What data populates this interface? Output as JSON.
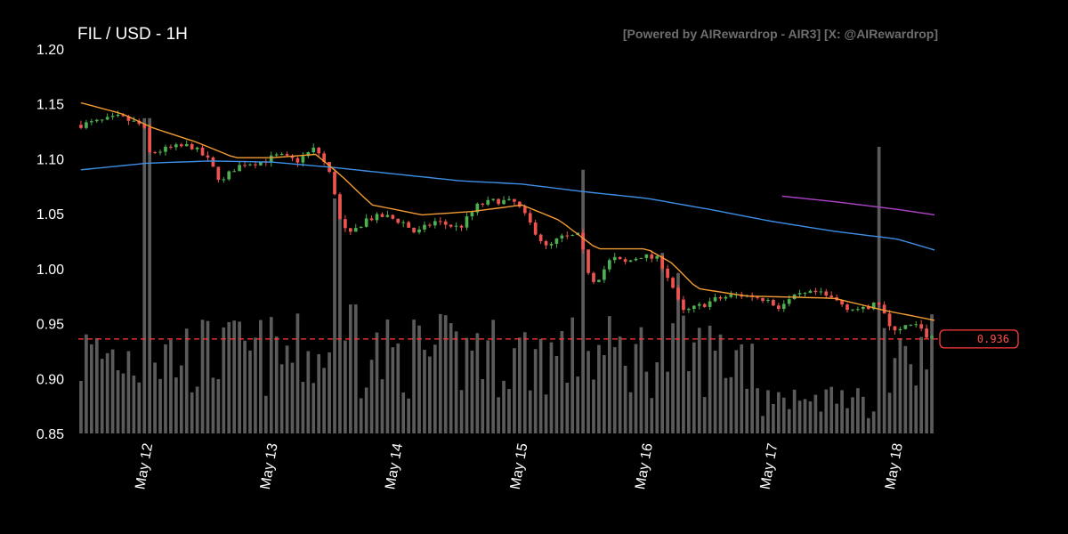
{
  "header": {
    "title": "FIL / USD - 1H",
    "credit": "[Powered by AIRewardrop - AIR3] [X: @AIRewardrop]"
  },
  "colors": {
    "background": "#000000",
    "up": "#4caf50",
    "down": "#ef5350",
    "ma_fast": "#f39c33",
    "ma_slow": "#3d8fe6",
    "ma_long": "#b044c8",
    "volume": "#6b6b6b",
    "last_price": "#ff3b3b"
  },
  "chart_data": {
    "type": "candlestick",
    "title": "FIL / USD - 1H",
    "ylim": [
      0.85,
      1.2
    ],
    "y_ticks": [
      "1.20",
      "1.15",
      "1.10",
      "1.05",
      "1.00",
      "0.95",
      "0.90",
      "0.85"
    ],
    "x_ticks": [
      "May 12",
      "May 13",
      "May 14",
      "May 15",
      "May 16",
      "May 17",
      "May 18"
    ],
    "x_range_days": [
      11.45,
      18.3
    ],
    "last_price": 0.936,
    "last_price_label": "0.936",
    "close_anchors": [
      [
        11.47,
        1.131
      ],
      [
        11.62,
        1.134
      ],
      [
        11.78,
        1.138
      ],
      [
        11.97,
        1.13
      ],
      [
        12.02,
        1.105
      ],
      [
        12.2,
        1.11
      ],
      [
        12.35,
        1.112
      ],
      [
        12.48,
        1.1
      ],
      [
        12.6,
        1.078
      ],
      [
        12.68,
        1.09
      ],
      [
        12.78,
        1.096
      ],
      [
        12.9,
        1.097
      ],
      [
        13.05,
        1.103
      ],
      [
        13.2,
        1.098
      ],
      [
        13.35,
        1.11
      ],
      [
        13.45,
        1.09
      ],
      [
        13.5,
        1.07
      ],
      [
        13.55,
        1.04
      ],
      [
        13.62,
        1.03
      ],
      [
        13.75,
        1.045
      ],
      [
        13.9,
        1.048
      ],
      [
        14.05,
        1.042
      ],
      [
        14.15,
        1.032
      ],
      [
        14.3,
        1.043
      ],
      [
        14.5,
        1.037
      ],
      [
        14.65,
        1.058
      ],
      [
        14.8,
        1.062
      ],
      [
        14.95,
        1.06
      ],
      [
        15.1,
        1.035
      ],
      [
        15.2,
        1.018
      ],
      [
        15.3,
        1.028
      ],
      [
        15.45,
        1.03
      ],
      [
        15.55,
        0.99
      ],
      [
        15.6,
        0.99
      ],
      [
        15.72,
        1.01
      ],
      [
        15.82,
        1.005
      ],
      [
        15.95,
        1.012
      ],
      [
        16.1,
        1.008
      ],
      [
        16.2,
        0.985
      ],
      [
        16.28,
        0.96
      ],
      [
        16.4,
        0.965
      ],
      [
        16.55,
        0.972
      ],
      [
        16.7,
        0.976
      ],
      [
        16.85,
        0.975
      ],
      [
        16.95,
        0.972
      ],
      [
        17.05,
        0.965
      ],
      [
        17.2,
        0.975
      ],
      [
        17.35,
        0.978
      ],
      [
        17.5,
        0.972
      ],
      [
        17.6,
        0.965
      ],
      [
        17.75,
        0.962
      ],
      [
        17.85,
        0.97
      ],
      [
        17.9,
        0.958
      ],
      [
        17.93,
        0.945
      ],
      [
        18.0,
        0.946
      ],
      [
        18.15,
        0.948
      ],
      [
        18.22,
        0.94
      ],
      [
        18.3,
        0.936
      ]
    ],
    "ma_fast_anchors": [
      [
        11.47,
        1.151
      ],
      [
        11.8,
        1.141
      ],
      [
        12.05,
        1.128
      ],
      [
        12.4,
        1.115
      ],
      [
        12.7,
        1.101
      ],
      [
        13.0,
        1.101
      ],
      [
        13.35,
        1.104
      ],
      [
        13.55,
        1.085
      ],
      [
        13.8,
        1.058
      ],
      [
        14.2,
        1.049
      ],
      [
        14.6,
        1.052
      ],
      [
        15.0,
        1.058
      ],
      [
        15.3,
        1.044
      ],
      [
        15.6,
        1.018
      ],
      [
        16.0,
        1.018
      ],
      [
        16.2,
        1.005
      ],
      [
        16.4,
        0.982
      ],
      [
        16.8,
        0.975
      ],
      [
        17.2,
        0.974
      ],
      [
        17.5,
        0.973
      ],
      [
        17.9,
        0.962
      ],
      [
        18.3,
        0.953
      ]
    ],
    "ma_slow_anchors": [
      [
        11.47,
        1.09
      ],
      [
        12.0,
        1.096
      ],
      [
        12.5,
        1.098
      ],
      [
        13.0,
        1.097
      ],
      [
        13.5,
        1.092
      ],
      [
        14.0,
        1.086
      ],
      [
        14.5,
        1.08
      ],
      [
        15.0,
        1.077
      ],
      [
        15.5,
        1.07
      ],
      [
        16.0,
        1.064
      ],
      [
        16.5,
        1.054
      ],
      [
        17.0,
        1.043
      ],
      [
        17.5,
        1.034
      ],
      [
        18.0,
        1.027
      ],
      [
        18.3,
        1.017
      ]
    ],
    "ma_long_anchors": [
      [
        17.08,
        1.066
      ],
      [
        17.5,
        1.061
      ],
      [
        18.0,
        1.054
      ],
      [
        18.3,
        1.049
      ]
    ],
    "volume_spikes": [
      [
        12.0,
        1.1
      ],
      [
        13.52,
        0.82
      ],
      [
        15.48,
        0.92
      ],
      [
        16.25,
        0.56
      ],
      [
        17.87,
        1.0
      ],
      [
        11.7,
        0.28
      ],
      [
        12.6,
        0.37
      ],
      [
        13.65,
        0.45
      ],
      [
        14.65,
        0.35
      ],
      [
        15.15,
        0.33
      ],
      [
        15.5,
        0.7
      ],
      [
        16.12,
        0.63
      ],
      [
        17.88,
        0.35
      ]
    ]
  }
}
